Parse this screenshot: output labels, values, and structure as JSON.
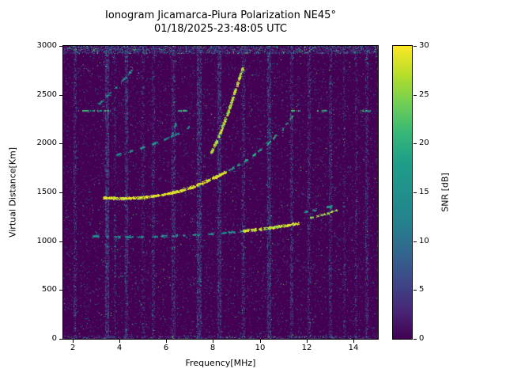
{
  "chart_data": {
    "type": "heatmap",
    "title": "Ionogram Jicamarca-Piura Polarization NE45°",
    "subtitle": "01/18/2025-23:48:05 UTC",
    "xlabel": "Frequency[MHz]",
    "ylabel": "Virtual Distance[Km]",
    "xlim": [
      1.6,
      15.05
    ],
    "ylim": [
      0,
      3000
    ],
    "x_ticks": [
      2,
      4,
      6,
      8,
      10,
      12,
      14
    ],
    "y_ticks": [
      0,
      500,
      1000,
      1500,
      2000,
      2500,
      3000
    ],
    "grid": false,
    "colorbar": {
      "label": "SNR [dB]",
      "min": 0,
      "max": 30,
      "ticks": [
        0,
        5,
        10,
        15,
        20,
        25,
        30
      ],
      "colormap": "viridis"
    },
    "background_snr_db": 0,
    "background_color": "#440154",
    "noise": {
      "seed": 7,
      "base_density": 0.05,
      "bright_density": 0.004,
      "top_band_km": [
        2930,
        3000
      ],
      "top_band_density": 0.4,
      "bottom_band_km": [
        0,
        30
      ],
      "bottom_band_density": 0.25
    },
    "rfi_stripes": [
      {
        "mhz": 2.08,
        "w": 0.1,
        "p": 0.3
      },
      {
        "mhz": 3.45,
        "w": 0.14,
        "p": 0.55
      },
      {
        "mhz": 3.8,
        "w": 0.08,
        "p": 0.25
      },
      {
        "mhz": 4.28,
        "w": 0.12,
        "p": 0.45
      },
      {
        "mhz": 5.0,
        "w": 0.08,
        "p": 0.18
      },
      {
        "mhz": 5.45,
        "w": 0.1,
        "p": 0.3
      },
      {
        "mhz": 6.3,
        "w": 0.12,
        "p": 0.35
      },
      {
        "mhz": 7.4,
        "w": 0.16,
        "p": 0.5
      },
      {
        "mhz": 8.25,
        "w": 0.12,
        "p": 0.45
      },
      {
        "mhz": 9.3,
        "w": 0.1,
        "p": 0.35
      },
      {
        "mhz": 10.4,
        "w": 0.14,
        "p": 0.5
      },
      {
        "mhz": 11.35,
        "w": 0.1,
        "p": 0.35
      },
      {
        "mhz": 12.1,
        "w": 0.1,
        "p": 0.3
      },
      {
        "mhz": 13.0,
        "w": 0.1,
        "p": 0.3
      },
      {
        "mhz": 13.6,
        "w": 0.08,
        "p": 0.2
      },
      {
        "mhz": 14.1,
        "w": 0.08,
        "p": 0.2
      },
      {
        "mhz": 14.55,
        "w": 0.1,
        "p": 0.3
      }
    ],
    "traces": [
      {
        "name": "f-trace-main-bright",
        "snr": 29,
        "width": 3,
        "dash": 0.12,
        "points": [
          [
            3.35,
            1440
          ],
          [
            4.2,
            1432
          ],
          [
            5.0,
            1442
          ],
          [
            5.8,
            1465
          ],
          [
            6.5,
            1500
          ],
          [
            7.2,
            1553
          ],
          [
            7.9,
            1625
          ],
          [
            8.6,
            1705
          ]
        ]
      },
      {
        "name": "f-trace-upper-teal",
        "snr": 18,
        "width": 2,
        "dash": 0.4,
        "points": [
          [
            8.7,
            1720
          ],
          [
            9.3,
            1800
          ],
          [
            9.9,
            1900
          ],
          [
            10.5,
            2020
          ],
          [
            11.0,
            2140
          ],
          [
            11.5,
            2300
          ]
        ]
      },
      {
        "name": "second-hop-steep-bright",
        "snr": 27,
        "width": 3,
        "dash": 0.15,
        "points": [
          [
            7.95,
            1900
          ],
          [
            8.3,
            2080
          ],
          [
            8.65,
            2300
          ],
          [
            9.0,
            2550
          ],
          [
            9.3,
            2770
          ]
        ]
      },
      {
        "name": "low-flat-teal",
        "snr": 14,
        "width": 2,
        "dash": 0.45,
        "points": [
          [
            2.9,
            1045
          ],
          [
            4.0,
            1038
          ],
          [
            5.2,
            1040
          ],
          [
            6.4,
            1050
          ],
          [
            7.5,
            1063
          ],
          [
            8.6,
            1082
          ],
          [
            9.3,
            1097
          ]
        ]
      },
      {
        "name": "low-flat-bright",
        "snr": 28,
        "width": 3,
        "dash": 0.15,
        "points": [
          [
            9.35,
            1100
          ],
          [
            10.2,
            1122
          ],
          [
            11.0,
            1148
          ],
          [
            11.7,
            1178
          ]
        ]
      },
      {
        "name": "low-branch-bright",
        "snr": 26,
        "width": 2,
        "dash": 0.2,
        "points": [
          [
            12.2,
            1235
          ],
          [
            12.8,
            1270
          ],
          [
            13.35,
            1315
          ]
        ]
      },
      {
        "name": "low-branch-teal",
        "snr": 16,
        "width": 2,
        "dash": 0.5,
        "points": [
          [
            11.95,
            1295
          ],
          [
            12.6,
            1325
          ],
          [
            13.15,
            1355
          ]
        ]
      },
      {
        "name": "mid-dashed-teal",
        "snr": 14,
        "width": 2,
        "dash": 0.55,
        "points": [
          [
            3.9,
            1880
          ],
          [
            4.6,
            1920
          ],
          [
            5.3,
            1975
          ],
          [
            6.0,
            2040
          ],
          [
            6.7,
            2115
          ],
          [
            7.25,
            2205
          ]
        ]
      },
      {
        "name": "mid-steep-dash",
        "snr": 15,
        "width": 2,
        "dash": 0.35,
        "points": [
          [
            6.25,
            2060
          ],
          [
            6.45,
            2200
          ]
        ]
      },
      {
        "name": "upper-left-teal",
        "snr": 15,
        "width": 2,
        "dash": 0.5,
        "points": [
          [
            3.15,
            2400
          ],
          [
            3.5,
            2480
          ],
          [
            3.9,
            2575
          ],
          [
            4.3,
            2675
          ],
          [
            4.62,
            2765
          ]
        ]
      }
    ],
    "interference": {
      "range_km": 2330,
      "snr": 20,
      "width": 2,
      "segments_mhz": [
        [
          2.25,
          3.6
        ],
        [
          6.5,
          6.9
        ],
        [
          11.3,
          11.7
        ],
        [
          12.45,
          12.85
        ],
        [
          14.3,
          14.7
        ]
      ]
    }
  }
}
